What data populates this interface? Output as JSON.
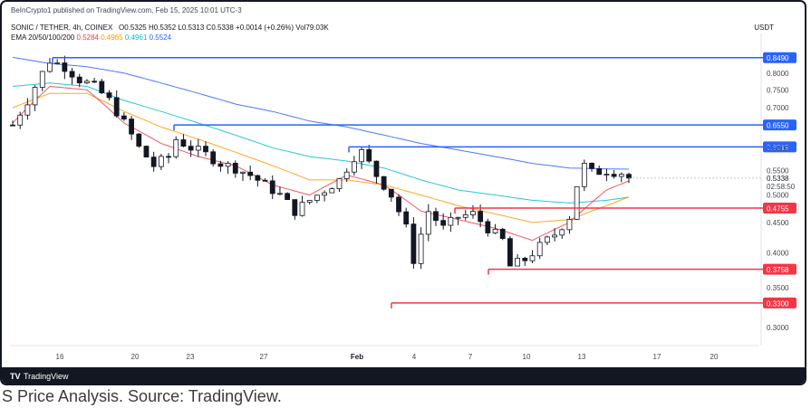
{
  "header": {
    "published": "BeInCrypto1 published on TradingView.com, Feb 15, 2025 10:01 UTC-3",
    "symbol": "SONIC / TETHER, 4h, COINEX",
    "ohlc": "O0.5325  H0.5352  L0.5313  C0.5338  +0.0014 (+0.26%)  Vol79.03K",
    "ema_label": "EMA 20/50/100/200",
    "ema_values": [
      "0.5284",
      "0.4965",
      "0.4961",
      "0.5524"
    ],
    "unit": "USDT"
  },
  "footer": {
    "logo": "TV",
    "brand": "TradingView"
  },
  "caption": "S Price Analysis. Source: TradingView.",
  "colors": {
    "up": "#131722",
    "down": "#131722",
    "ema20": "#f23645",
    "ema50": "#ff9800",
    "ema100": "#00bcd4",
    "ema200": "#2962ff",
    "resistance": "#2962ff",
    "support": "#f23645"
  },
  "chart_data": {
    "type": "candlestick",
    "y_scale": "log",
    "ylim": [
      0.28,
      0.9
    ],
    "x_ticks": [
      "16",
      "20",
      "23",
      "27",
      "Feb",
      "4",
      "7",
      "10",
      "13",
      "17",
      "20"
    ],
    "y_ticks": [
      "0.8000",
      "0.7500",
      "0.7000",
      "0.6000",
      "0.5500",
      "0.5000",
      "0.4500",
      "0.4000",
      "0.3500",
      "0.3000"
    ],
    "price_label": "0.5338",
    "countdown": "02:58:50",
    "levels": [
      {
        "value": 0.849,
        "label": "0.8490",
        "kind": "resistance"
      },
      {
        "value": 0.655,
        "label": "0.6550",
        "kind": "resistance"
      },
      {
        "value": 0.6019,
        "label": "0.6019",
        "kind": "resistance"
      },
      {
        "value": 0.4755,
        "label": "0.4755",
        "kind": "support"
      },
      {
        "value": 0.3758,
        "label": "0.3758",
        "kind": "support"
      },
      {
        "value": 0.33,
        "label": "0.3300",
        "kind": "support"
      }
    ],
    "close_path": [
      [
        0,
        0.655
      ],
      [
        2,
        0.72
      ],
      [
        4,
        0.8
      ],
      [
        5,
        0.84
      ],
      [
        7,
        0.82
      ],
      [
        9,
        0.78
      ],
      [
        11,
        0.76
      ],
      [
        13,
        0.72
      ],
      [
        15,
        0.66
      ],
      [
        17,
        0.6
      ],
      [
        19,
        0.56
      ],
      [
        21,
        0.58
      ],
      [
        22,
        0.62
      ],
      [
        24,
        0.6
      ],
      [
        26,
        0.585
      ],
      [
        28,
        0.565
      ],
      [
        30,
        0.555
      ],
      [
        32,
        0.54
      ],
      [
        34,
        0.52
      ],
      [
        36,
        0.5
      ],
      [
        38,
        0.47
      ],
      [
        40,
        0.49
      ],
      [
        42,
        0.51
      ],
      [
        44,
        0.53
      ],
      [
        46,
        0.58
      ],
      [
        47,
        0.59
      ],
      [
        49,
        0.54
      ],
      [
        51,
        0.5
      ],
      [
        53,
        0.44
      ],
      [
        54,
        0.39
      ],
      [
        55,
        0.43
      ],
      [
        56,
        0.47
      ],
      [
        58,
        0.44
      ],
      [
        60,
        0.46
      ],
      [
        62,
        0.465
      ],
      [
        64,
        0.44
      ],
      [
        66,
        0.42
      ],
      [
        67,
        0.38
      ],
      [
        69,
        0.39
      ],
      [
        71,
        0.41
      ],
      [
        73,
        0.43
      ],
      [
        75,
        0.46
      ],
      [
        76,
        0.52
      ],
      [
        77,
        0.56
      ],
      [
        78,
        0.545
      ],
      [
        80,
        0.55
      ],
      [
        82,
        0.545
      ],
      [
        83,
        0.534
      ]
    ],
    "ema_paths": {
      "ema20": [
        [
          0,
          0.66
        ],
        [
          5,
          0.76
        ],
        [
          10,
          0.75
        ],
        [
          15,
          0.66
        ],
        [
          20,
          0.61
        ],
        [
          25,
          0.58
        ],
        [
          30,
          0.56
        ],
        [
          35,
          0.52
        ],
        [
          40,
          0.5
        ],
        [
          45,
          0.54
        ],
        [
          50,
          0.52
        ],
        [
          55,
          0.47
        ],
        [
          60,
          0.455
        ],
        [
          65,
          0.44
        ],
        [
          70,
          0.42
        ],
        [
          75,
          0.45
        ],
        [
          80,
          0.51
        ],
        [
          83,
          0.528
        ]
      ],
      "ema50": [
        [
          0,
          0.7
        ],
        [
          5,
          0.74
        ],
        [
          10,
          0.74
        ],
        [
          15,
          0.69
        ],
        [
          20,
          0.65
        ],
        [
          25,
          0.62
        ],
        [
          30,
          0.59
        ],
        [
          35,
          0.56
        ],
        [
          40,
          0.53
        ],
        [
          45,
          0.53
        ],
        [
          50,
          0.52
        ],
        [
          55,
          0.5
        ],
        [
          60,
          0.48
        ],
        [
          65,
          0.465
        ],
        [
          70,
          0.45
        ],
        [
          75,
          0.455
        ],
        [
          80,
          0.48
        ],
        [
          83,
          0.4965
        ]
      ],
      "ema100": [
        [
          0,
          0.76
        ],
        [
          5,
          0.77
        ],
        [
          10,
          0.76
        ],
        [
          15,
          0.72
        ],
        [
          20,
          0.69
        ],
        [
          25,
          0.66
        ],
        [
          30,
          0.63
        ],
        [
          35,
          0.6
        ],
        [
          40,
          0.58
        ],
        [
          45,
          0.57
        ],
        [
          50,
          0.555
        ],
        [
          55,
          0.53
        ],
        [
          60,
          0.51
        ],
        [
          65,
          0.5
        ],
        [
          70,
          0.49
        ],
        [
          75,
          0.485
        ],
        [
          80,
          0.49
        ],
        [
          83,
          0.4961
        ]
      ],
      "ema200": [
        [
          0,
          0.85
        ],
        [
          5,
          0.83
        ],
        [
          10,
          0.82
        ],
        [
          15,
          0.8
        ],
        [
          20,
          0.77
        ],
        [
          25,
          0.74
        ],
        [
          30,
          0.71
        ],
        [
          35,
          0.69
        ],
        [
          40,
          0.665
        ],
        [
          45,
          0.65
        ],
        [
          50,
          0.63
        ],
        [
          55,
          0.61
        ],
        [
          60,
          0.595
        ],
        [
          65,
          0.58
        ],
        [
          70,
          0.565
        ],
        [
          75,
          0.555
        ],
        [
          80,
          0.553
        ],
        [
          83,
          0.5524
        ]
      ]
    }
  }
}
